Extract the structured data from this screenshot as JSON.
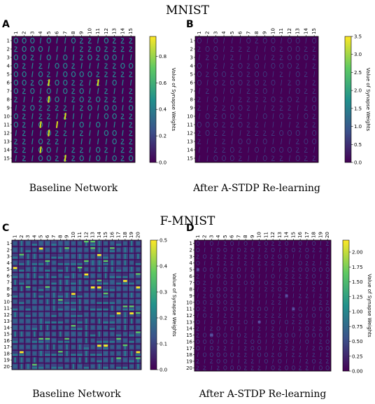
{
  "sections": {
    "top": {
      "title": "MNIST"
    },
    "bottom": {
      "title": "F-MNIST"
    }
  },
  "colormap": [
    "#440154",
    "#3b528b",
    "#21918c",
    "#5ec962",
    "#fde725"
  ],
  "chart_data": [
    {
      "id": "A",
      "type": "heatmap",
      "title": "MNIST",
      "caption": "Baseline Network",
      "rows": [
        "1",
        "2",
        "3",
        "4",
        "5",
        "6",
        "7",
        "8",
        "9",
        "10",
        "11",
        "12",
        "13",
        "14",
        "15"
      ],
      "cols": [
        "1",
        "2",
        "3",
        "4",
        "5",
        "6",
        "7",
        "8",
        "9",
        "10",
        "11",
        "12",
        "13",
        "14",
        "15"
      ],
      "content": "15x15 grid of learned synapse weight maps, each depicting a handwritten digit",
      "colorbar": {
        "label": "Value of Synapse Weights",
        "min": 0.0,
        "max": 0.95,
        "ticks": [
          "0.0",
          "0.2",
          "0.4",
          "0.6",
          "0.8"
        ]
      }
    },
    {
      "id": "B",
      "type": "heatmap",
      "title": "MNIST",
      "caption": "After A-STDP Re-learning",
      "rows": [
        "1",
        "2",
        "3",
        "4",
        "5",
        "6",
        "7",
        "8",
        "9",
        "10",
        "11",
        "12",
        "13",
        "14",
        "15"
      ],
      "cols": [
        "1",
        "2",
        "3",
        "4",
        "5",
        "6",
        "7",
        "8",
        "9",
        "10",
        "11",
        "12",
        "13",
        "14",
        "15"
      ],
      "content": "15x15 grid of faint synapse weight maps of handwritten digits",
      "colorbar": {
        "label": "Value of Synapse Weights",
        "min": 0.0,
        "max": 3.5,
        "ticks": [
          "0.0",
          "0.5",
          "1.0",
          "1.5",
          "2.0",
          "2.5",
          "3.0",
          "3.5"
        ]
      }
    },
    {
      "id": "C",
      "type": "heatmap",
      "title": "F-MNIST",
      "caption": "Baseline Network",
      "rows": [
        "1",
        "2",
        "3",
        "4",
        "5",
        "6",
        "7",
        "8",
        "9",
        "10",
        "11",
        "12",
        "13",
        "14",
        "15",
        "16",
        "17",
        "18",
        "19",
        "20"
      ],
      "cols": [
        "1",
        "2",
        "3",
        "4",
        "5",
        "6",
        "7",
        "8",
        "9",
        "10",
        "11",
        "12",
        "13",
        "14",
        "15",
        "16",
        "17",
        "18",
        "19",
        "20"
      ],
      "content": "20x20 grid of learned synapse weight maps depicting clothing items",
      "colorbar": {
        "label": "Value of Synapse Weights",
        "min": 0.0,
        "max": 0.5,
        "ticks": [
          "0.0",
          "0.1",
          "0.2",
          "0.3",
          "0.4",
          "0.5"
        ]
      }
    },
    {
      "id": "D",
      "type": "heatmap",
      "title": "F-MNIST",
      "caption": "After A-STDP Re-learning",
      "rows": [
        "1",
        "2",
        "3",
        "4",
        "5",
        "6",
        "7",
        "8",
        "9",
        "10",
        "11",
        "12",
        "13",
        "14",
        "15",
        "16",
        "17",
        "18",
        "19",
        "20"
      ],
      "cols": [
        "1",
        "2",
        "3",
        "4",
        "5",
        "6",
        "7",
        "8",
        "9",
        "10",
        "11",
        "12",
        "13",
        "14",
        "15",
        "16",
        "17",
        "18",
        "19",
        "20"
      ],
      "content": "20x20 grid of faint synapse weight maps of clothing items",
      "colorbar": {
        "label": "Value of Synapse Weights",
        "min": 0.0,
        "max": 2.2,
        "ticks": [
          "0.00",
          "0.25",
          "0.50",
          "0.75",
          "1.00",
          "1.25",
          "1.50",
          "1.75",
          "2.00"
        ]
      }
    }
  ]
}
